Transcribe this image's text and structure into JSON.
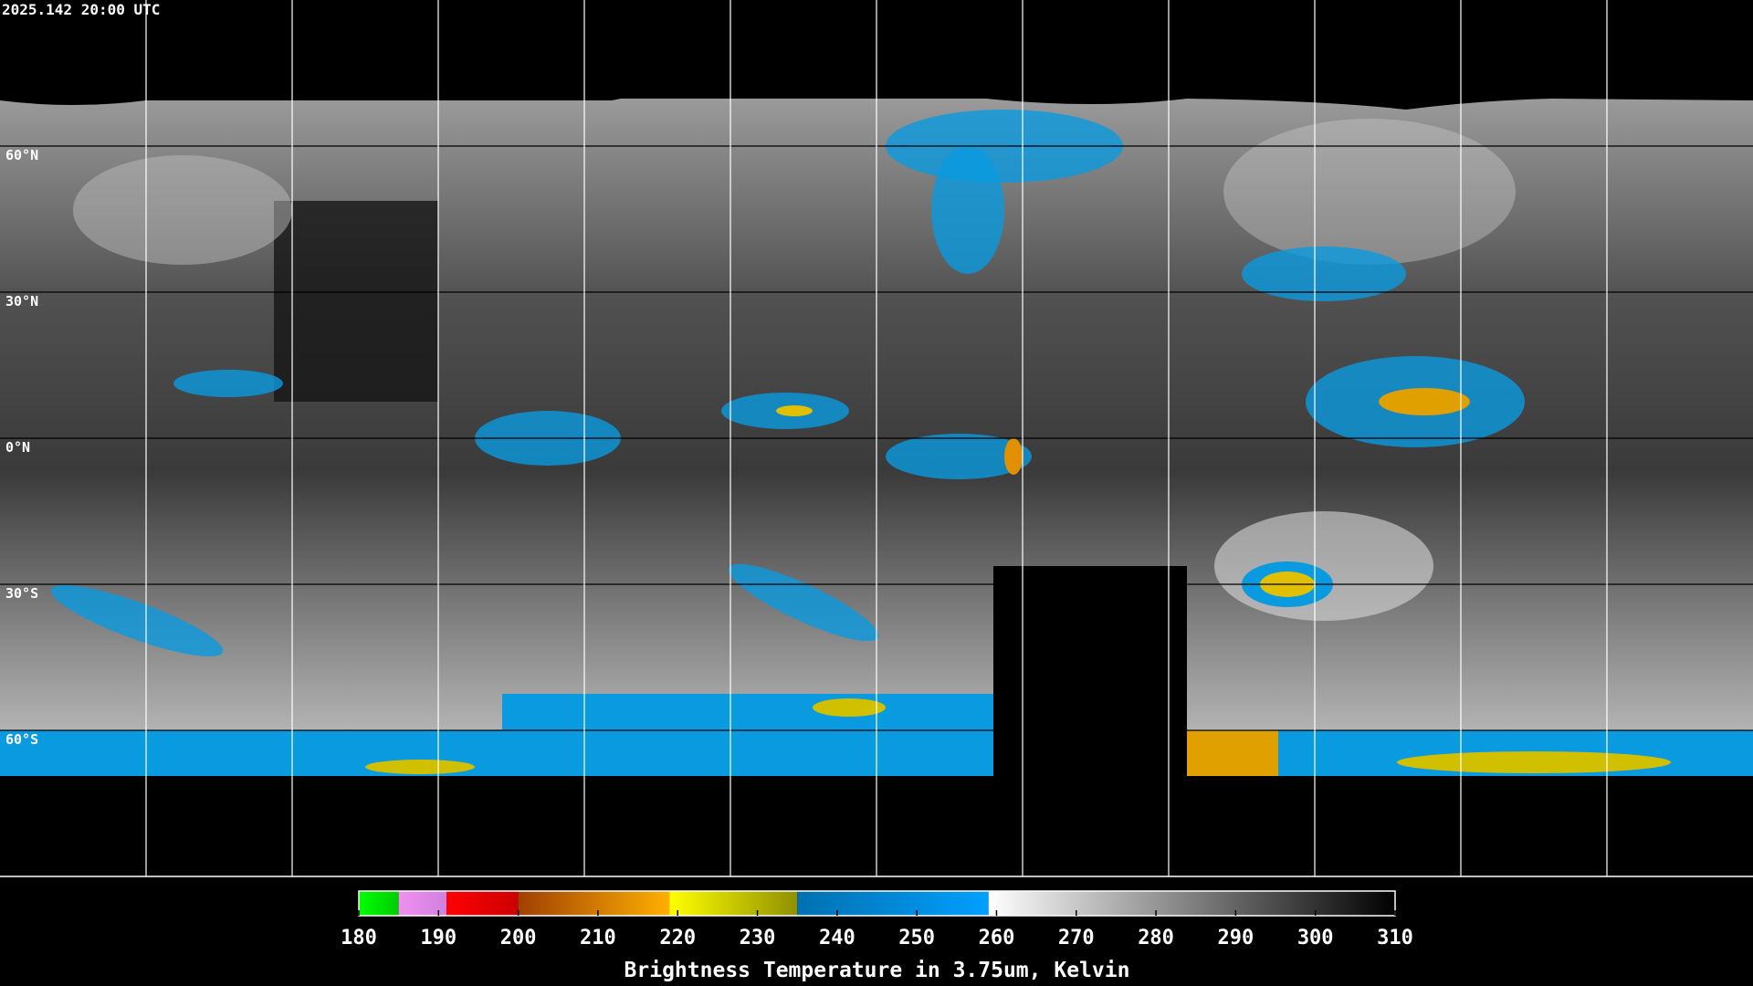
{
  "timestamp": "2025.142 20:00 UTC",
  "lat_labels": [
    "60°N",
    "30°N",
    "0°N",
    "30°S",
    "60°S"
  ],
  "colorbar": {
    "title": "Brightness Temperature in 3.75um, Kelvin",
    "range": [
      180,
      310
    ],
    "ticks": [
      180,
      190,
      200,
      210,
      220,
      230,
      240,
      250,
      260,
      270,
      280,
      290,
      300,
      310
    ],
    "segments": [
      {
        "from": 180,
        "to": 185,
        "colors": [
          "#00ff00",
          "#00cc00"
        ]
      },
      {
        "from": 185,
        "to": 191,
        "colors": [
          "#f090f0",
          "#d080e0"
        ]
      },
      {
        "from": 191,
        "to": 200,
        "colors": [
          "#ff0000",
          "#cc0000"
        ]
      },
      {
        "from": 200,
        "to": 219,
        "colors": [
          "#a04000",
          "#ffb000"
        ]
      },
      {
        "from": 219,
        "to": 235,
        "colors": [
          "#ffff00",
          "#909000"
        ]
      },
      {
        "from": 235,
        "to": 259,
        "colors": [
          "#0070b0",
          "#00a0ff"
        ]
      },
      {
        "from": 259,
        "to": 310,
        "colors": [
          "#ffffff",
          "#000000"
        ]
      }
    ]
  }
}
